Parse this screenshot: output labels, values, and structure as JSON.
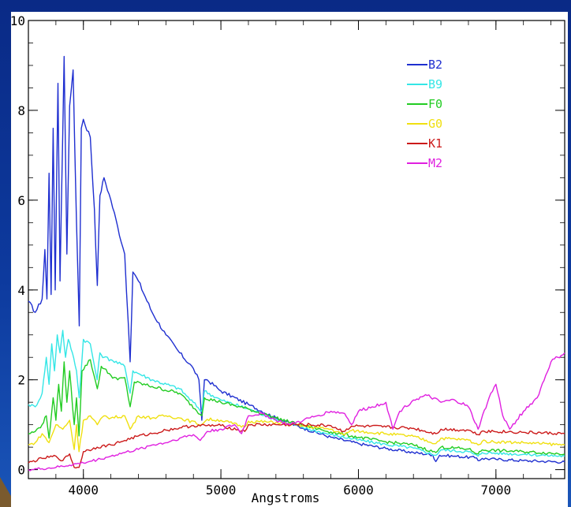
{
  "chart_data": {
    "type": "line",
    "title": "",
    "xlabel": "Angstroms",
    "ylabel": "",
    "xlim": [
      3600,
      7500
    ],
    "ylim": [
      -0.2,
      10
    ],
    "x_ticks": [
      4000,
      5000,
      6000,
      7000
    ],
    "x_tick_labels": [
      "4000",
      "5000",
      "6000",
      "7000"
    ],
    "y_ticks": [
      0,
      2,
      4,
      6,
      8,
      10
    ],
    "y_tick_labels": [
      "0",
      "2",
      "4",
      "6",
      "8",
      "10"
    ],
    "grid": false,
    "legend_position": "top-right",
    "series": [
      {
        "name": "B2",
        "color": "#1f2fd0",
        "points": [
          [
            3600,
            3.75
          ],
          [
            3650,
            3.5
          ],
          [
            3700,
            3.8
          ],
          [
            3720,
            4.9
          ],
          [
            3735,
            3.8
          ],
          [
            3750,
            6.6
          ],
          [
            3765,
            3.9
          ],
          [
            3780,
            7.6
          ],
          [
            3795,
            4.0
          ],
          [
            3815,
            8.6
          ],
          [
            3830,
            4.2
          ],
          [
            3860,
            9.2
          ],
          [
            3880,
            4.8
          ],
          [
            3900,
            8.1
          ],
          [
            3925,
            8.9
          ],
          [
            3950,
            5.5
          ],
          [
            3970,
            3.2
          ],
          [
            3985,
            7.6
          ],
          [
            4000,
            7.8
          ],
          [
            4050,
            7.4
          ],
          [
            4080,
            5.8
          ],
          [
            4101,
            4.1
          ],
          [
            4120,
            6.1
          ],
          [
            4150,
            6.5
          ],
          [
            4200,
            6.0
          ],
          [
            4250,
            5.4
          ],
          [
            4300,
            4.8
          ],
          [
            4340,
            2.4
          ],
          [
            4360,
            4.4
          ],
          [
            4400,
            4.2
          ],
          [
            4500,
            3.5
          ],
          [
            4600,
            3.0
          ],
          [
            4700,
            2.6
          ],
          [
            4800,
            2.25
          ],
          [
            4840,
            2.0
          ],
          [
            4861,
            1.1
          ],
          [
            4880,
            2.0
          ],
          [
            4900,
            2.0
          ],
          [
            5000,
            1.75
          ],
          [
            5200,
            1.45
          ],
          [
            5400,
            1.15
          ],
          [
            5600,
            0.92
          ],
          [
            5800,
            0.72
          ],
          [
            6000,
            0.58
          ],
          [
            6200,
            0.47
          ],
          [
            6400,
            0.38
          ],
          [
            6540,
            0.33
          ],
          [
            6563,
            0.18
          ],
          [
            6590,
            0.32
          ],
          [
            6700,
            0.3
          ],
          [
            6860,
            0.26
          ],
          [
            6870,
            0.2
          ],
          [
            6900,
            0.25
          ],
          [
            7000,
            0.23
          ],
          [
            7200,
            0.2
          ],
          [
            7500,
            0.17
          ]
        ]
      },
      {
        "name": "B9",
        "color": "#34e6e6",
        "points": [
          [
            3600,
            1.45
          ],
          [
            3650,
            1.4
          ],
          [
            3700,
            1.7
          ],
          [
            3730,
            2.5
          ],
          [
            3750,
            1.9
          ],
          [
            3770,
            2.8
          ],
          [
            3790,
            2.2
          ],
          [
            3810,
            3.0
          ],
          [
            3830,
            2.6
          ],
          [
            3850,
            3.1
          ],
          [
            3870,
            2.5
          ],
          [
            3890,
            2.9
          ],
          [
            3920,
            2.6
          ],
          [
            3950,
            2.2
          ],
          [
            3970,
            1.6
          ],
          [
            4000,
            2.9
          ],
          [
            4050,
            2.8
          ],
          [
            4100,
            2.0
          ],
          [
            4120,
            2.6
          ],
          [
            4150,
            2.5
          ],
          [
            4200,
            2.45
          ],
          [
            4300,
            2.3
          ],
          [
            4340,
            1.7
          ],
          [
            4360,
            2.2
          ],
          [
            4500,
            2.0
          ],
          [
            4700,
            1.8
          ],
          [
            4861,
            1.3
          ],
          [
            4880,
            1.75
          ],
          [
            5000,
            1.55
          ],
          [
            5200,
            1.35
          ],
          [
            5400,
            1.12
          ],
          [
            5600,
            0.93
          ],
          [
            5800,
            0.78
          ],
          [
            6000,
            0.66
          ],
          [
            6200,
            0.56
          ],
          [
            6400,
            0.48
          ],
          [
            6563,
            0.32
          ],
          [
            6600,
            0.44
          ],
          [
            6800,
            0.4
          ],
          [
            6870,
            0.3
          ],
          [
            6900,
            0.38
          ],
          [
            7200,
            0.34
          ],
          [
            7500,
            0.3
          ]
        ]
      },
      {
        "name": "F0",
        "color": "#22cc22",
        "points": [
          [
            3600,
            0.8
          ],
          [
            3650,
            0.85
          ],
          [
            3700,
            1.0
          ],
          [
            3730,
            1.2
          ],
          [
            3750,
            0.7
          ],
          [
            3780,
            1.6
          ],
          [
            3800,
            1.1
          ],
          [
            3820,
            1.9
          ],
          [
            3840,
            1.3
          ],
          [
            3860,
            2.4
          ],
          [
            3880,
            1.5
          ],
          [
            3900,
            2.2
          ],
          [
            3933,
            1.0
          ],
          [
            3950,
            1.6
          ],
          [
            3968,
            0.75
          ],
          [
            3990,
            2.2
          ],
          [
            4050,
            2.45
          ],
          [
            4101,
            1.8
          ],
          [
            4130,
            2.3
          ],
          [
            4200,
            2.1
          ],
          [
            4250,
            2.0
          ],
          [
            4300,
            2.05
          ],
          [
            4340,
            1.4
          ],
          [
            4370,
            1.95
          ],
          [
            4500,
            1.85
          ],
          [
            4700,
            1.7
          ],
          [
            4861,
            1.2
          ],
          [
            4880,
            1.6
          ],
          [
            5000,
            1.5
          ],
          [
            5200,
            1.35
          ],
          [
            5400,
            1.15
          ],
          [
            5600,
            0.98
          ],
          [
            5800,
            0.84
          ],
          [
            6000,
            0.72
          ],
          [
            6200,
            0.62
          ],
          [
            6400,
            0.55
          ],
          [
            6563,
            0.38
          ],
          [
            6600,
            0.5
          ],
          [
            6800,
            0.46
          ],
          [
            6870,
            0.35
          ],
          [
            6900,
            0.44
          ],
          [
            7200,
            0.4
          ],
          [
            7500,
            0.35
          ]
        ]
      },
      {
        "name": "G0",
        "color": "#f0e010",
        "points": [
          [
            3600,
            0.55
          ],
          [
            3650,
            0.6
          ],
          [
            3700,
            0.8
          ],
          [
            3750,
            0.6
          ],
          [
            3800,
            1.0
          ],
          [
            3850,
            0.9
          ],
          [
            3900,
            1.1
          ],
          [
            3933,
            0.45
          ],
          [
            3950,
            1.0
          ],
          [
            3968,
            0.4
          ],
          [
            4000,
            1.1
          ],
          [
            4050,
            1.2
          ],
          [
            4101,
            1.0
          ],
          [
            4150,
            1.2
          ],
          [
            4200,
            1.15
          ],
          [
            4300,
            1.2
          ],
          [
            4340,
            0.9
          ],
          [
            4400,
            1.2
          ],
          [
            4500,
            1.15
          ],
          [
            4600,
            1.2
          ],
          [
            4700,
            1.15
          ],
          [
            4861,
            1.0
          ],
          [
            4900,
            1.12
          ],
          [
            5000,
            1.1
          ],
          [
            5173,
            0.95
          ],
          [
            5200,
            1.08
          ],
          [
            5400,
            1.05
          ],
          [
            5600,
            0.97
          ],
          [
            5800,
            0.9
          ],
          [
            5890,
            0.78
          ],
          [
            5950,
            0.87
          ],
          [
            6200,
            0.8
          ],
          [
            6400,
            0.74
          ],
          [
            6563,
            0.58
          ],
          [
            6600,
            0.7
          ],
          [
            6800,
            0.66
          ],
          [
            6870,
            0.55
          ],
          [
            6900,
            0.63
          ],
          [
            7200,
            0.6
          ],
          [
            7500,
            0.55
          ]
        ]
      },
      {
        "name": "K1",
        "color": "#cc1a1a",
        "points": [
          [
            3600,
            0.15
          ],
          [
            3700,
            0.25
          ],
          [
            3800,
            0.3
          ],
          [
            3850,
            0.2
          ],
          [
            3900,
            0.35
          ],
          [
            3933,
            0.05
          ],
          [
            3968,
            0.05
          ],
          [
            4000,
            0.4
          ],
          [
            4100,
            0.5
          ],
          [
            4200,
            0.55
          ],
          [
            4300,
            0.65
          ],
          [
            4400,
            0.75
          ],
          [
            4500,
            0.8
          ],
          [
            4600,
            0.88
          ],
          [
            4700,
            0.93
          ],
          [
            4800,
            0.98
          ],
          [
            4900,
            0.98
          ],
          [
            5000,
            0.98
          ],
          [
            5173,
            0.85
          ],
          [
            5200,
            1.0
          ],
          [
            5400,
            1.0
          ],
          [
            5600,
            1.0
          ],
          [
            5800,
            0.98
          ],
          [
            5890,
            0.85
          ],
          [
            5950,
            0.97
          ],
          [
            6200,
            0.95
          ],
          [
            6400,
            0.92
          ],
          [
            6563,
            0.8
          ],
          [
            6600,
            0.9
          ],
          [
            6800,
            0.88
          ],
          [
            6870,
            0.78
          ],
          [
            6900,
            0.86
          ],
          [
            7200,
            0.83
          ],
          [
            7500,
            0.8
          ]
        ]
      },
      {
        "name": "M2",
        "color": "#e020e0",
        "points": [
          [
            3600,
            0.0
          ],
          [
            3700,
            0.02
          ],
          [
            3800,
            0.05
          ],
          [
            3900,
            0.1
          ],
          [
            4000,
            0.15
          ],
          [
            4100,
            0.22
          ],
          [
            4200,
            0.3
          ],
          [
            4300,
            0.38
          ],
          [
            4400,
            0.45
          ],
          [
            4500,
            0.55
          ],
          [
            4600,
            0.6
          ],
          [
            4700,
            0.7
          ],
          [
            4800,
            0.78
          ],
          [
            4850,
            0.65
          ],
          [
            4900,
            0.85
          ],
          [
            5000,
            0.9
          ],
          [
            5100,
            1.0
          ],
          [
            5150,
            0.8
          ],
          [
            5200,
            1.2
          ],
          [
            5300,
            1.25
          ],
          [
            5400,
            1.1
          ],
          [
            5500,
            1.0
          ],
          [
            5600,
            1.1
          ],
          [
            5700,
            1.2
          ],
          [
            5800,
            1.3
          ],
          [
            5900,
            1.25
          ],
          [
            5950,
            1.0
          ],
          [
            6000,
            1.3
          ],
          [
            6100,
            1.4
          ],
          [
            6200,
            1.5
          ],
          [
            6250,
            0.9
          ],
          [
            6300,
            1.3
          ],
          [
            6400,
            1.55
          ],
          [
            6500,
            1.65
          ],
          [
            6600,
            1.5
          ],
          [
            6700,
            1.55
          ],
          [
            6800,
            1.4
          ],
          [
            6870,
            0.9
          ],
          [
            6950,
            1.6
          ],
          [
            7000,
            1.9
          ],
          [
            7050,
            1.2
          ],
          [
            7100,
            0.9
          ],
          [
            7200,
            1.3
          ],
          [
            7300,
            1.6
          ],
          [
            7400,
            2.4
          ],
          [
            7450,
            2.5
          ],
          [
            7500,
            2.6
          ]
        ]
      }
    ]
  }
}
